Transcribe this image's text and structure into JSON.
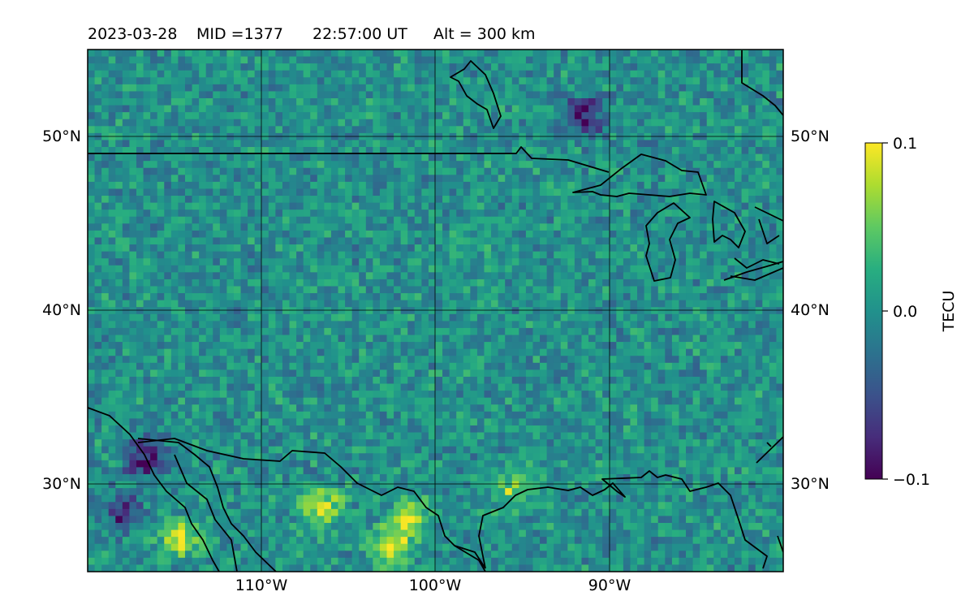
{
  "header": {
    "date": "2023-03-28",
    "mid": "MID =1377",
    "time": "22:57:00  UT",
    "altitude": "Alt = 300 km"
  },
  "map": {
    "lat_range": [
      25,
      55
    ],
    "lon_range": [
      -120,
      -80
    ],
    "lat_ticks": [
      {
        "value": 30,
        "label": "30°N"
      },
      {
        "value": 40,
        "label": "40°N"
      },
      {
        "value": 50,
        "label": "50°N"
      }
    ],
    "lon_ticks": [
      {
        "value": -110,
        "label": "110°W"
      },
      {
        "value": -100,
        "label": "100°W"
      },
      {
        "value": -90,
        "label": "90°W"
      }
    ],
    "gridlines": true,
    "coastline_color": "#000000",
    "colormap": "viridis"
  },
  "colorbar": {
    "label": "TECU",
    "min": -0.1,
    "max": 0.1,
    "ticks": [
      {
        "value": 0.1,
        "label": "0.1"
      },
      {
        "value": 0.0,
        "label": "0.0"
      },
      {
        "value": -0.1,
        "label": "−0.1"
      }
    ]
  },
  "chart_data": {
    "type": "heatmap",
    "title": "2023-03-28  MID =1377    22:57:00  UT  Alt = 300 km",
    "variable": "TECU",
    "value_range": [
      -0.1,
      0.1
    ],
    "background_level": 0.0,
    "hotspots": [
      {
        "lat": 26.5,
        "lon": -102.5,
        "value": 0.1
      },
      {
        "lat": 28.6,
        "lon": -106.5,
        "value": 0.09
      },
      {
        "lat": 28.2,
        "lon": -101.5,
        "value": 0.07
      },
      {
        "lat": 27.0,
        "lon": -114.6,
        "value": 0.09
      },
      {
        "lat": 29.8,
        "lon": -95.5,
        "value": 0.06
      },
      {
        "lat": 31.5,
        "lon": -116.7,
        "value": -0.1
      },
      {
        "lat": 51.2,
        "lon": -91.4,
        "value": -0.1
      },
      {
        "lat": 28.5,
        "lon": -118.0,
        "value": -0.07
      }
    ]
  }
}
